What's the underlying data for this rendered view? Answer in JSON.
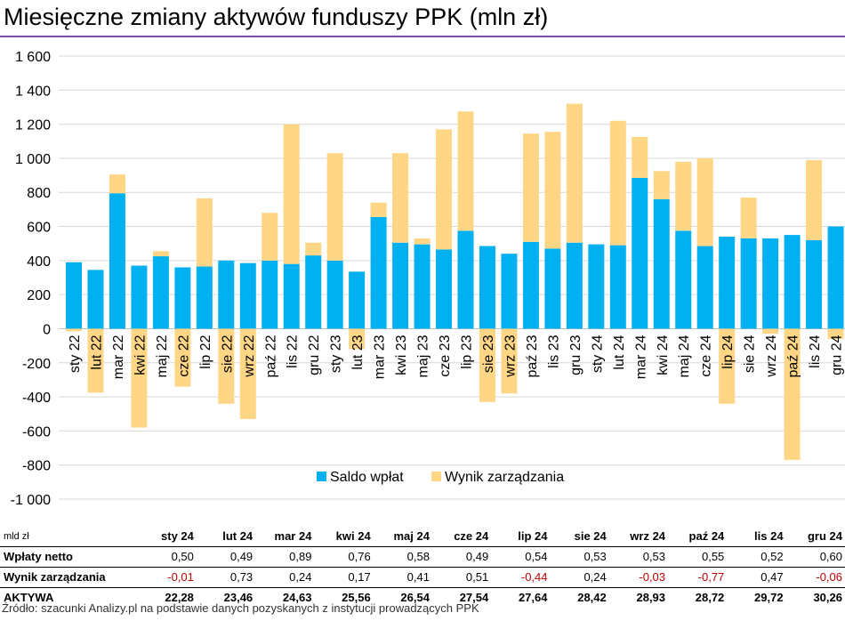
{
  "title": "Miesięczne zmiany aktywów funduszy PPK (mln zł)",
  "colors": {
    "saldo": "#00b0f0",
    "wynik": "#ffd685",
    "title_rule": "#7a4fa7",
    "negative_text": "#c00000"
  },
  "chart_data": {
    "type": "bar",
    "stacked": true,
    "title": "",
    "xlabel": "",
    "ylabel": "",
    "ylim": [
      -1000,
      1600
    ],
    "yticks": [
      -1000,
      -800,
      -600,
      -400,
      -200,
      0,
      200,
      400,
      600,
      800,
      1000,
      1200,
      1400,
      1600
    ],
    "ytick_labels": [
      "-1 000",
      "-800",
      "-600",
      "-400",
      "-200",
      "0",
      "200",
      "400",
      "600",
      "800",
      "1 000",
      "1 200",
      "1 400",
      "1 600"
    ],
    "grid": true,
    "legend_position": "bottom",
    "categories": [
      "sty 22",
      "lut 22",
      "mar 22",
      "kwi 22",
      "maj 22",
      "cze 22",
      "lip 22",
      "sie 22",
      "wrz 22",
      "paź 22",
      "lis 22",
      "gru 22",
      "sty 23",
      "lut 23",
      "mar 23",
      "kwi 23",
      "maj 23",
      "cze 23",
      "lip 23",
      "sie 23",
      "wrz 23",
      "paź 23",
      "lis 23",
      "gru 23",
      "sty 24",
      "lut 24",
      "mar 24",
      "kwi 24",
      "maj 24",
      "cze 24",
      "lip 24",
      "sie 24",
      "wrz 24",
      "paź 24",
      "lis 24",
      "gru 24"
    ],
    "series": [
      {
        "name": "Saldo wpłat",
        "values": [
          390,
          345,
          795,
          370,
          425,
          360,
          365,
          400,
          385,
          400,
          380,
          430,
          400,
          335,
          655,
          505,
          495,
          465,
          575,
          485,
          440,
          510,
          470,
          505,
          495,
          490,
          885,
          760,
          575,
          485,
          540,
          530,
          530,
          550,
          520,
          600
        ]
      },
      {
        "name": "Wynik zarządzania",
        "values": [
          -15,
          -375,
          110,
          -580,
          30,
          -340,
          400,
          -440,
          -530,
          280,
          820,
          75,
          630,
          -120,
          85,
          525,
          35,
          705,
          700,
          -430,
          -380,
          635,
          685,
          815,
          0,
          730,
          240,
          165,
          405,
          515,
          -440,
          240,
          -30,
          -770,
          470,
          -60
        ]
      }
    ]
  },
  "table": {
    "unit_label": "mld zł",
    "columns": [
      "sty 24",
      "lut 24",
      "mar 24",
      "kwi 24",
      "maj 24",
      "cze 24",
      "lip 24",
      "sie 24",
      "wrz 24",
      "paź 24",
      "lis 24",
      "gru 24"
    ],
    "rows": [
      {
        "label": "Wpłaty netto",
        "values": [
          "0,50",
          "0,49",
          "0,89",
          "0,76",
          "0,58",
          "0,49",
          "0,54",
          "0,53",
          "0,53",
          "0,55",
          "0,52",
          "0,60"
        ]
      },
      {
        "label": "Wynik zarządzania",
        "values": [
          "-0,01",
          "0,73",
          "0,24",
          "0,17",
          "0,41",
          "0,51",
          "-0,44",
          "0,24",
          "-0,03",
          "-0,77",
          "0,47",
          "-0,06"
        ]
      },
      {
        "label": "AKTYWA",
        "values": [
          "22,28",
          "23,46",
          "24,63",
          "25,56",
          "26,54",
          "27,54",
          "27,64",
          "28,42",
          "28,93",
          "28,72",
          "29,72",
          "30,26"
        ]
      }
    ]
  },
  "source": "Źródło: szacunki Analizy.pl na podstawie danych pozyskanych z instytucji prowadzących PPK"
}
